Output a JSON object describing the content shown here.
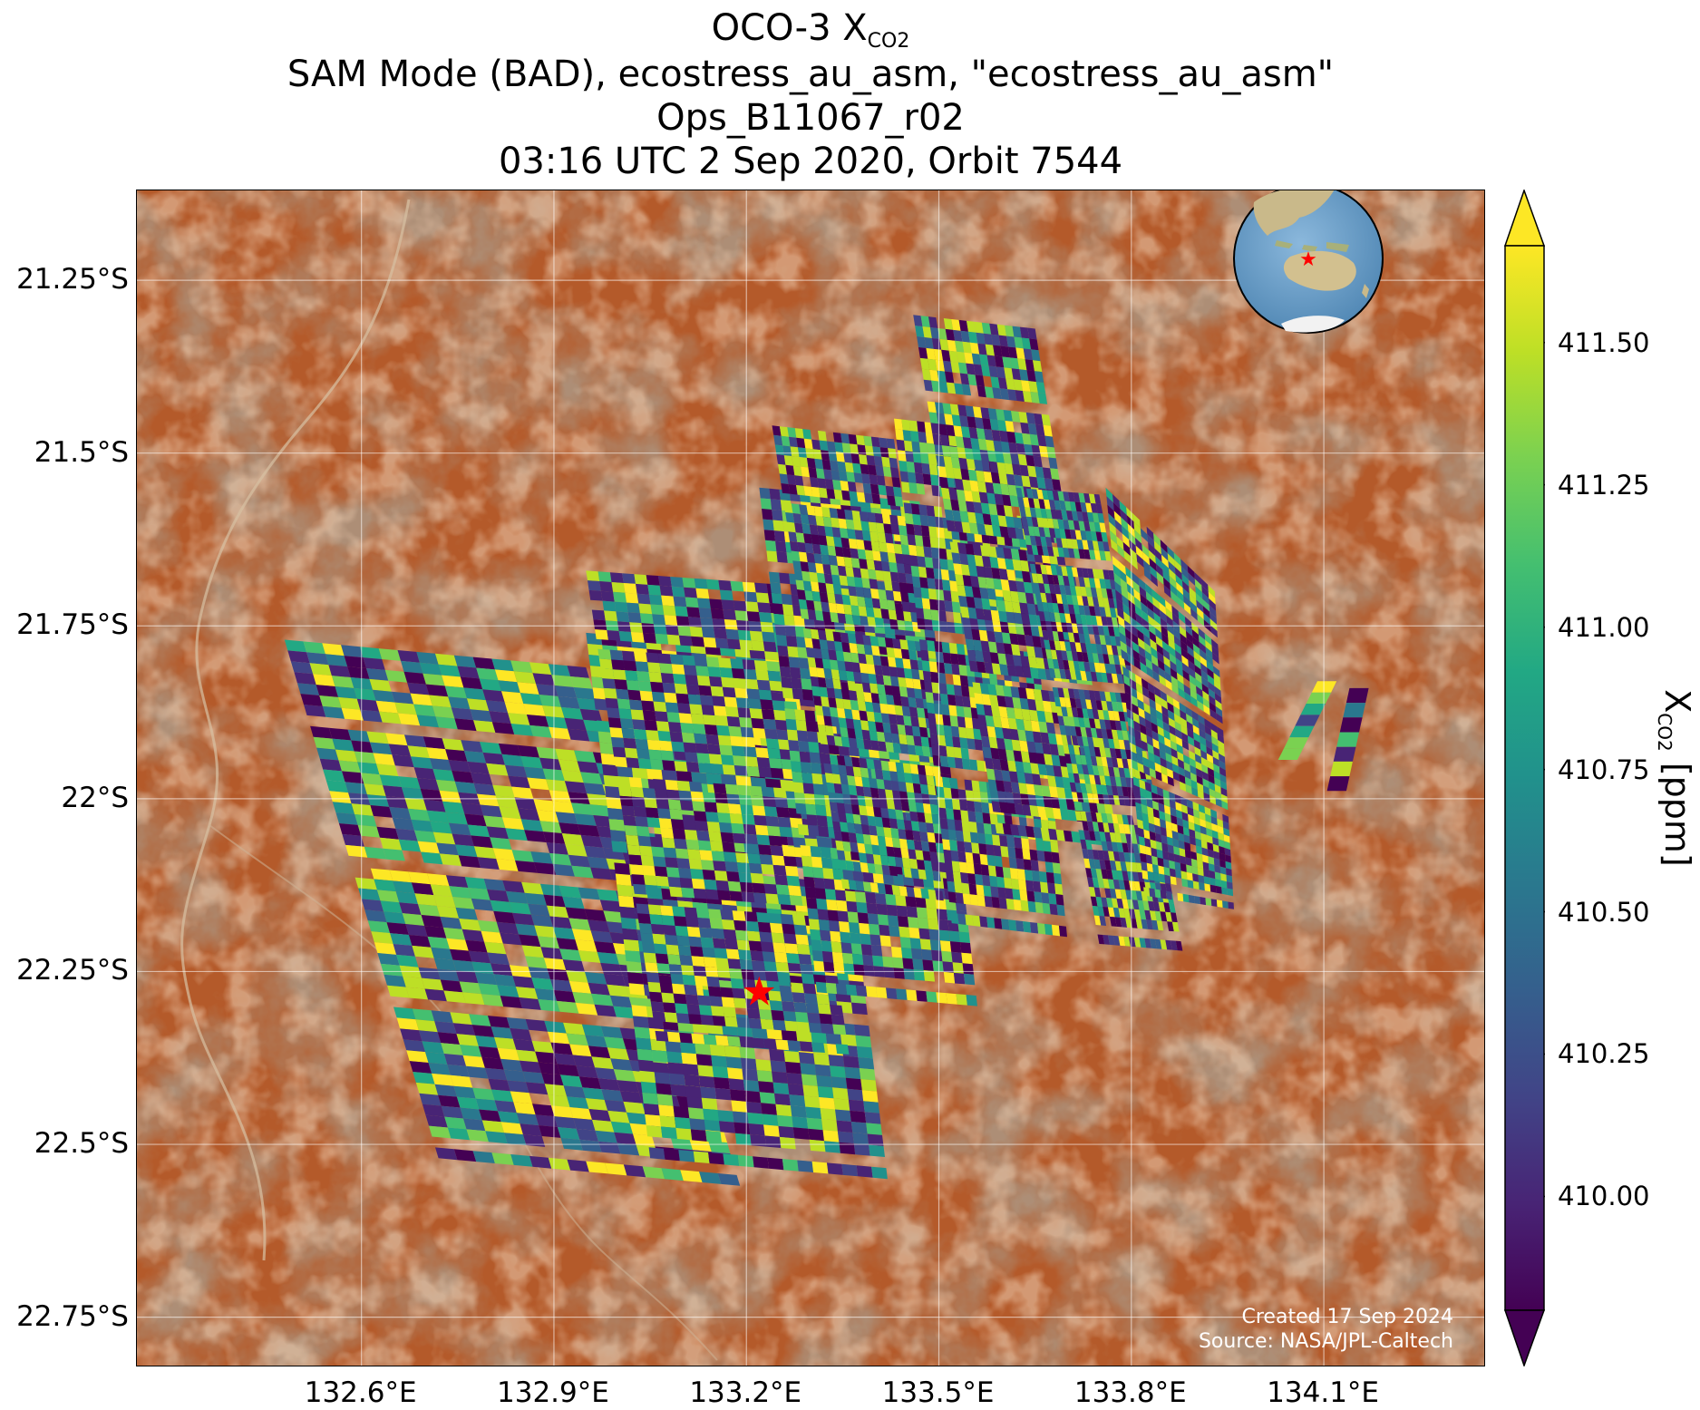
{
  "title": {
    "line1_prefix": "OCO-3 X",
    "line1_sub": "CO2",
    "line2": "SAM Mode (BAD), ecostress_au_asm, \"ecostress_au_asm\"",
    "line3": "Ops_B11067_r02",
    "line4": "03:16 UTC 2 Sep 2020, Orbit 7544"
  },
  "map": {
    "lon_range": [
      132.25,
      134.35
    ],
    "lat_range": [
      -22.82,
      -21.12
    ],
    "lat_ticks": [
      {
        "value": -21.25,
        "label": "21.25°S"
      },
      {
        "value": -21.5,
        "label": "21.5°S"
      },
      {
        "value": -21.75,
        "label": "21.75°S"
      },
      {
        "value": -22.0,
        "label": "22°S"
      },
      {
        "value": -22.25,
        "label": "22.25°S"
      },
      {
        "value": -22.5,
        "label": "22.5°S"
      },
      {
        "value": -22.75,
        "label": "22.75°S"
      }
    ],
    "lon_ticks": [
      {
        "value": 132.6,
        "label": "132.6°E"
      },
      {
        "value": 132.9,
        "label": "132.9°E"
      },
      {
        "value": 133.2,
        "label": "133.2°E"
      },
      {
        "value": 133.5,
        "label": "133.5°E"
      },
      {
        "value": 133.8,
        "label": "133.8°E"
      },
      {
        "value": 134.1,
        "label": "134.1°E"
      }
    ],
    "target_marker": {
      "lon": 133.22,
      "lat": -22.28,
      "color": "#ff0000",
      "symbol": "star"
    },
    "background_colors": {
      "desert": "#b45a2a",
      "dark_rock": "#6e4630",
      "pale_sand": "#d89a6c"
    },
    "inset_globe": {
      "ocean_color": "#6b9fc9",
      "land_color": "#c9b98a",
      "marker_color": "#ff0000"
    },
    "credit_line1": "Created 17 Sep 2024",
    "credit_line2": "Source: NASA/JPL-Caltech",
    "grid": true
  },
  "colorbar": {
    "colormap": "viridis",
    "vmin": 409.8,
    "vmax": 411.67,
    "extend": "both",
    "ticks": [
      "410.00",
      "410.25",
      "410.50",
      "410.75",
      "411.00",
      "411.25",
      "411.50"
    ],
    "label_prefix": "X",
    "label_sub": "CO2",
    "label_suffix": " [ppm]"
  },
  "chart_data": {
    "type": "heatmap",
    "title": "OCO-3 XCO2 SAM Mode (BAD), ecostress_au_asm, \"ecostress_au_asm\" Ops_B11067_r02 03:16 UTC 2 Sep 2020, Orbit 7544",
    "xlabel": "",
    "ylabel": "",
    "value_label": "XCO2 [ppm]",
    "value_range": [
      409.8,
      411.67
    ],
    "xlim": [
      132.25,
      134.35
    ],
    "ylim": [
      -22.82,
      -21.12
    ],
    "swaths": [
      {
        "corners_lonlat": [
          [
            132.48,
            -21.77
          ],
          [
            132.95,
            -21.81
          ],
          [
            133.19,
            -22.56
          ],
          [
            132.72,
            -22.52
          ]
        ]
      },
      {
        "corners_lonlat": [
          [
            132.95,
            -21.76
          ],
          [
            133.32,
            -21.79
          ],
          [
            133.42,
            -22.55
          ],
          [
            133.05,
            -22.52
          ]
        ]
      },
      {
        "corners_lonlat": [
          [
            132.95,
            -21.67
          ],
          [
            133.25,
            -21.69
          ],
          [
            133.36,
            -22.37
          ],
          [
            133.06,
            -22.35
          ]
        ]
      },
      {
        "corners_lonlat": [
          [
            133.22,
            -21.55
          ],
          [
            133.47,
            -21.57
          ],
          [
            133.56,
            -22.3
          ],
          [
            133.31,
            -22.28
          ]
        ]
      },
      {
        "corners_lonlat": [
          [
            133.24,
            -21.46
          ],
          [
            133.43,
            -21.48
          ],
          [
            133.53,
            -22.15
          ],
          [
            133.35,
            -22.13
          ]
        ]
      },
      {
        "corners_lonlat": [
          [
            133.43,
            -21.45
          ],
          [
            133.62,
            -21.47
          ],
          [
            133.7,
            -22.2
          ],
          [
            133.52,
            -22.18
          ]
        ]
      },
      {
        "corners_lonlat": [
          [
            133.46,
            -21.3
          ],
          [
            133.65,
            -21.32
          ],
          [
            133.78,
            -22.07
          ],
          [
            133.59,
            -22.05
          ]
        ]
      },
      {
        "corners_lonlat": [
          [
            133.62,
            -21.55
          ],
          [
            133.75,
            -21.56
          ],
          [
            133.88,
            -22.22
          ],
          [
            133.75,
            -22.21
          ]
        ]
      },
      {
        "corners_lonlat": [
          [
            133.76,
            -21.55
          ],
          [
            133.93,
            -21.7
          ],
          [
            133.96,
            -22.16
          ],
          [
            133.82,
            -22.14
          ]
        ]
      }
    ],
    "small_swaths": [
      {
        "corners_lonlat": [
          [
            134.09,
            -21.83
          ],
          [
            134.12,
            -21.83
          ],
          [
            134.05,
            -21.96
          ],
          [
            134.02,
            -21.96
          ]
        ]
      },
      {
        "corners_lonlat": [
          [
            134.14,
            -21.84
          ],
          [
            134.17,
            -21.84
          ],
          [
            134.13,
            -22.01
          ],
          [
            134.1,
            -22.01
          ]
        ]
      }
    ]
  }
}
